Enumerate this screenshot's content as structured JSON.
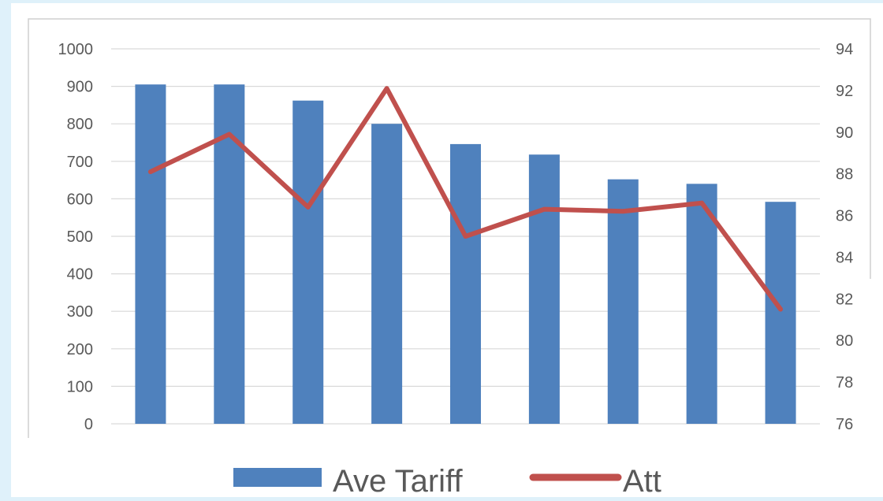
{
  "chart_data": {
    "type": "bar",
    "categories": [
      "",
      "",
      "",
      "",
      "",
      "",
      "",
      "",
      ""
    ],
    "series": [
      {
        "name": "Ave Tariff",
        "type": "bar",
        "axis": "left",
        "color": "#4f81bd",
        "values": [
          905,
          905,
          862,
          800,
          746,
          718,
          652,
          640,
          592
        ]
      },
      {
        "name": "Att",
        "type": "line",
        "axis": "right",
        "color": "#c0504d",
        "values": [
          88.1,
          89.9,
          86.4,
          92.1,
          85.0,
          86.3,
          86.2,
          86.6,
          81.5
        ]
      }
    ],
    "y_left": {
      "min": 0,
      "max": 1000,
      "ticks": [
        "0",
        "100",
        "200",
        "300",
        "400",
        "500",
        "600",
        "700",
        "800",
        "900",
        "1000"
      ]
    },
    "y_right": {
      "min": 76,
      "max": 94,
      "ticks": [
        "76",
        "78",
        "80",
        "82",
        "84",
        "86",
        "88",
        "90",
        "92",
        "94"
      ]
    },
    "title": "",
    "xlabel": "",
    "ylabel": "",
    "grid": true,
    "legend_position": "bottom"
  },
  "legend": {
    "items": [
      {
        "label": "Ave Tariff",
        "kind": "bar",
        "color": "#4f81bd"
      },
      {
        "label": "Att",
        "kind": "line",
        "color": "#c0504d"
      }
    ]
  }
}
